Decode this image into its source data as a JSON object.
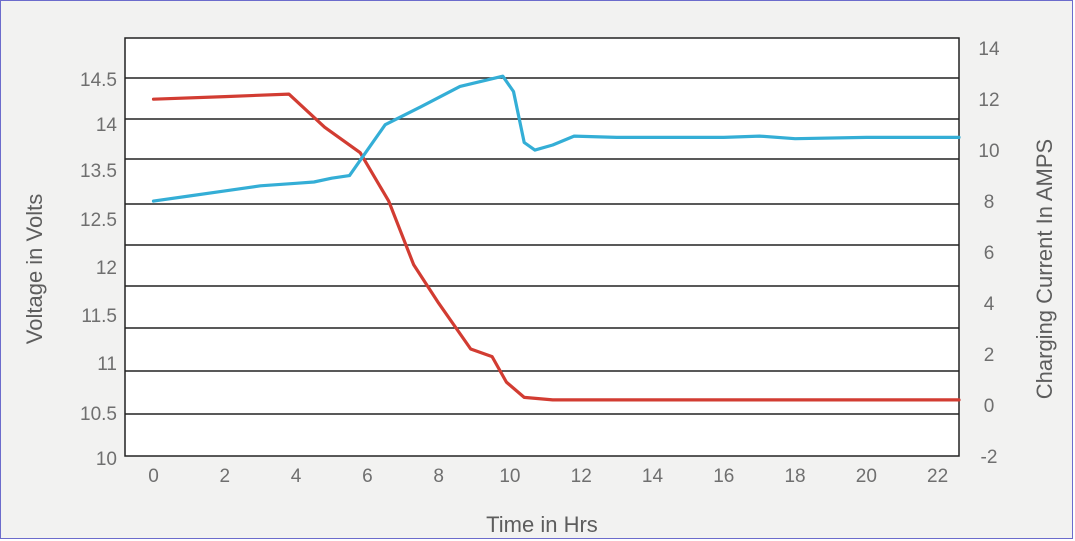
{
  "chart_data": {
    "type": "line",
    "xlabel": "Time in Hrs",
    "ylabel_left": "Voltage in Volts",
    "ylabel_right": "Charging Current In AMPS",
    "x_ticks": [
      "0",
      "2",
      "4",
      "6",
      "8",
      "10",
      "12",
      "14",
      "16",
      "18",
      "20",
      "22"
    ],
    "xlim": [
      -0.8,
      22.6
    ],
    "left_ticks": [
      "10",
      "10.5",
      "11",
      "11.5",
      "12",
      "12.5",
      "13.5",
      "14",
      "14.5"
    ],
    "right_ticks": [
      "-2",
      "0",
      "2",
      "4",
      "6",
      "8",
      "10",
      "12",
      "14"
    ],
    "ylim_right": [
      -2,
      14.4
    ],
    "grid": true,
    "series": [
      {
        "axis": "right",
        "color": "#d23c32",
        "x": [
          0,
          2,
          3.8,
          4.8,
          5.8,
          6.6,
          7.3,
          8.0,
          8.9,
          9.5,
          9.9,
          10.4,
          11.2,
          14,
          18,
          22.6
        ],
        "y": [
          12,
          12.1,
          12.2,
          10.9,
          9.9,
          8,
          5.5,
          4,
          2.2,
          1.9,
          0.9,
          0.3,
          0.2,
          0.2,
          0.2,
          0.2
        ]
      },
      {
        "axis": "right",
        "color": "#34aed6",
        "x": [
          0,
          1,
          2,
          3,
          4,
          4.5,
          5.0,
          5.5,
          6.5,
          7.5,
          8.6,
          9.8,
          10.1,
          10.4,
          10.7,
          11.2,
          11.8,
          13,
          16,
          17,
          18,
          20,
          22.6
        ],
        "y": [
          8,
          8.2,
          8.4,
          8.6,
          8.7,
          8.75,
          8.9,
          9.0,
          11.0,
          11.7,
          12.5,
          12.9,
          12.3,
          10.3,
          10.0,
          10.2,
          10.55,
          10.5,
          10.5,
          10.55,
          10.45,
          10.5,
          10.5
        ]
      }
    ]
  }
}
